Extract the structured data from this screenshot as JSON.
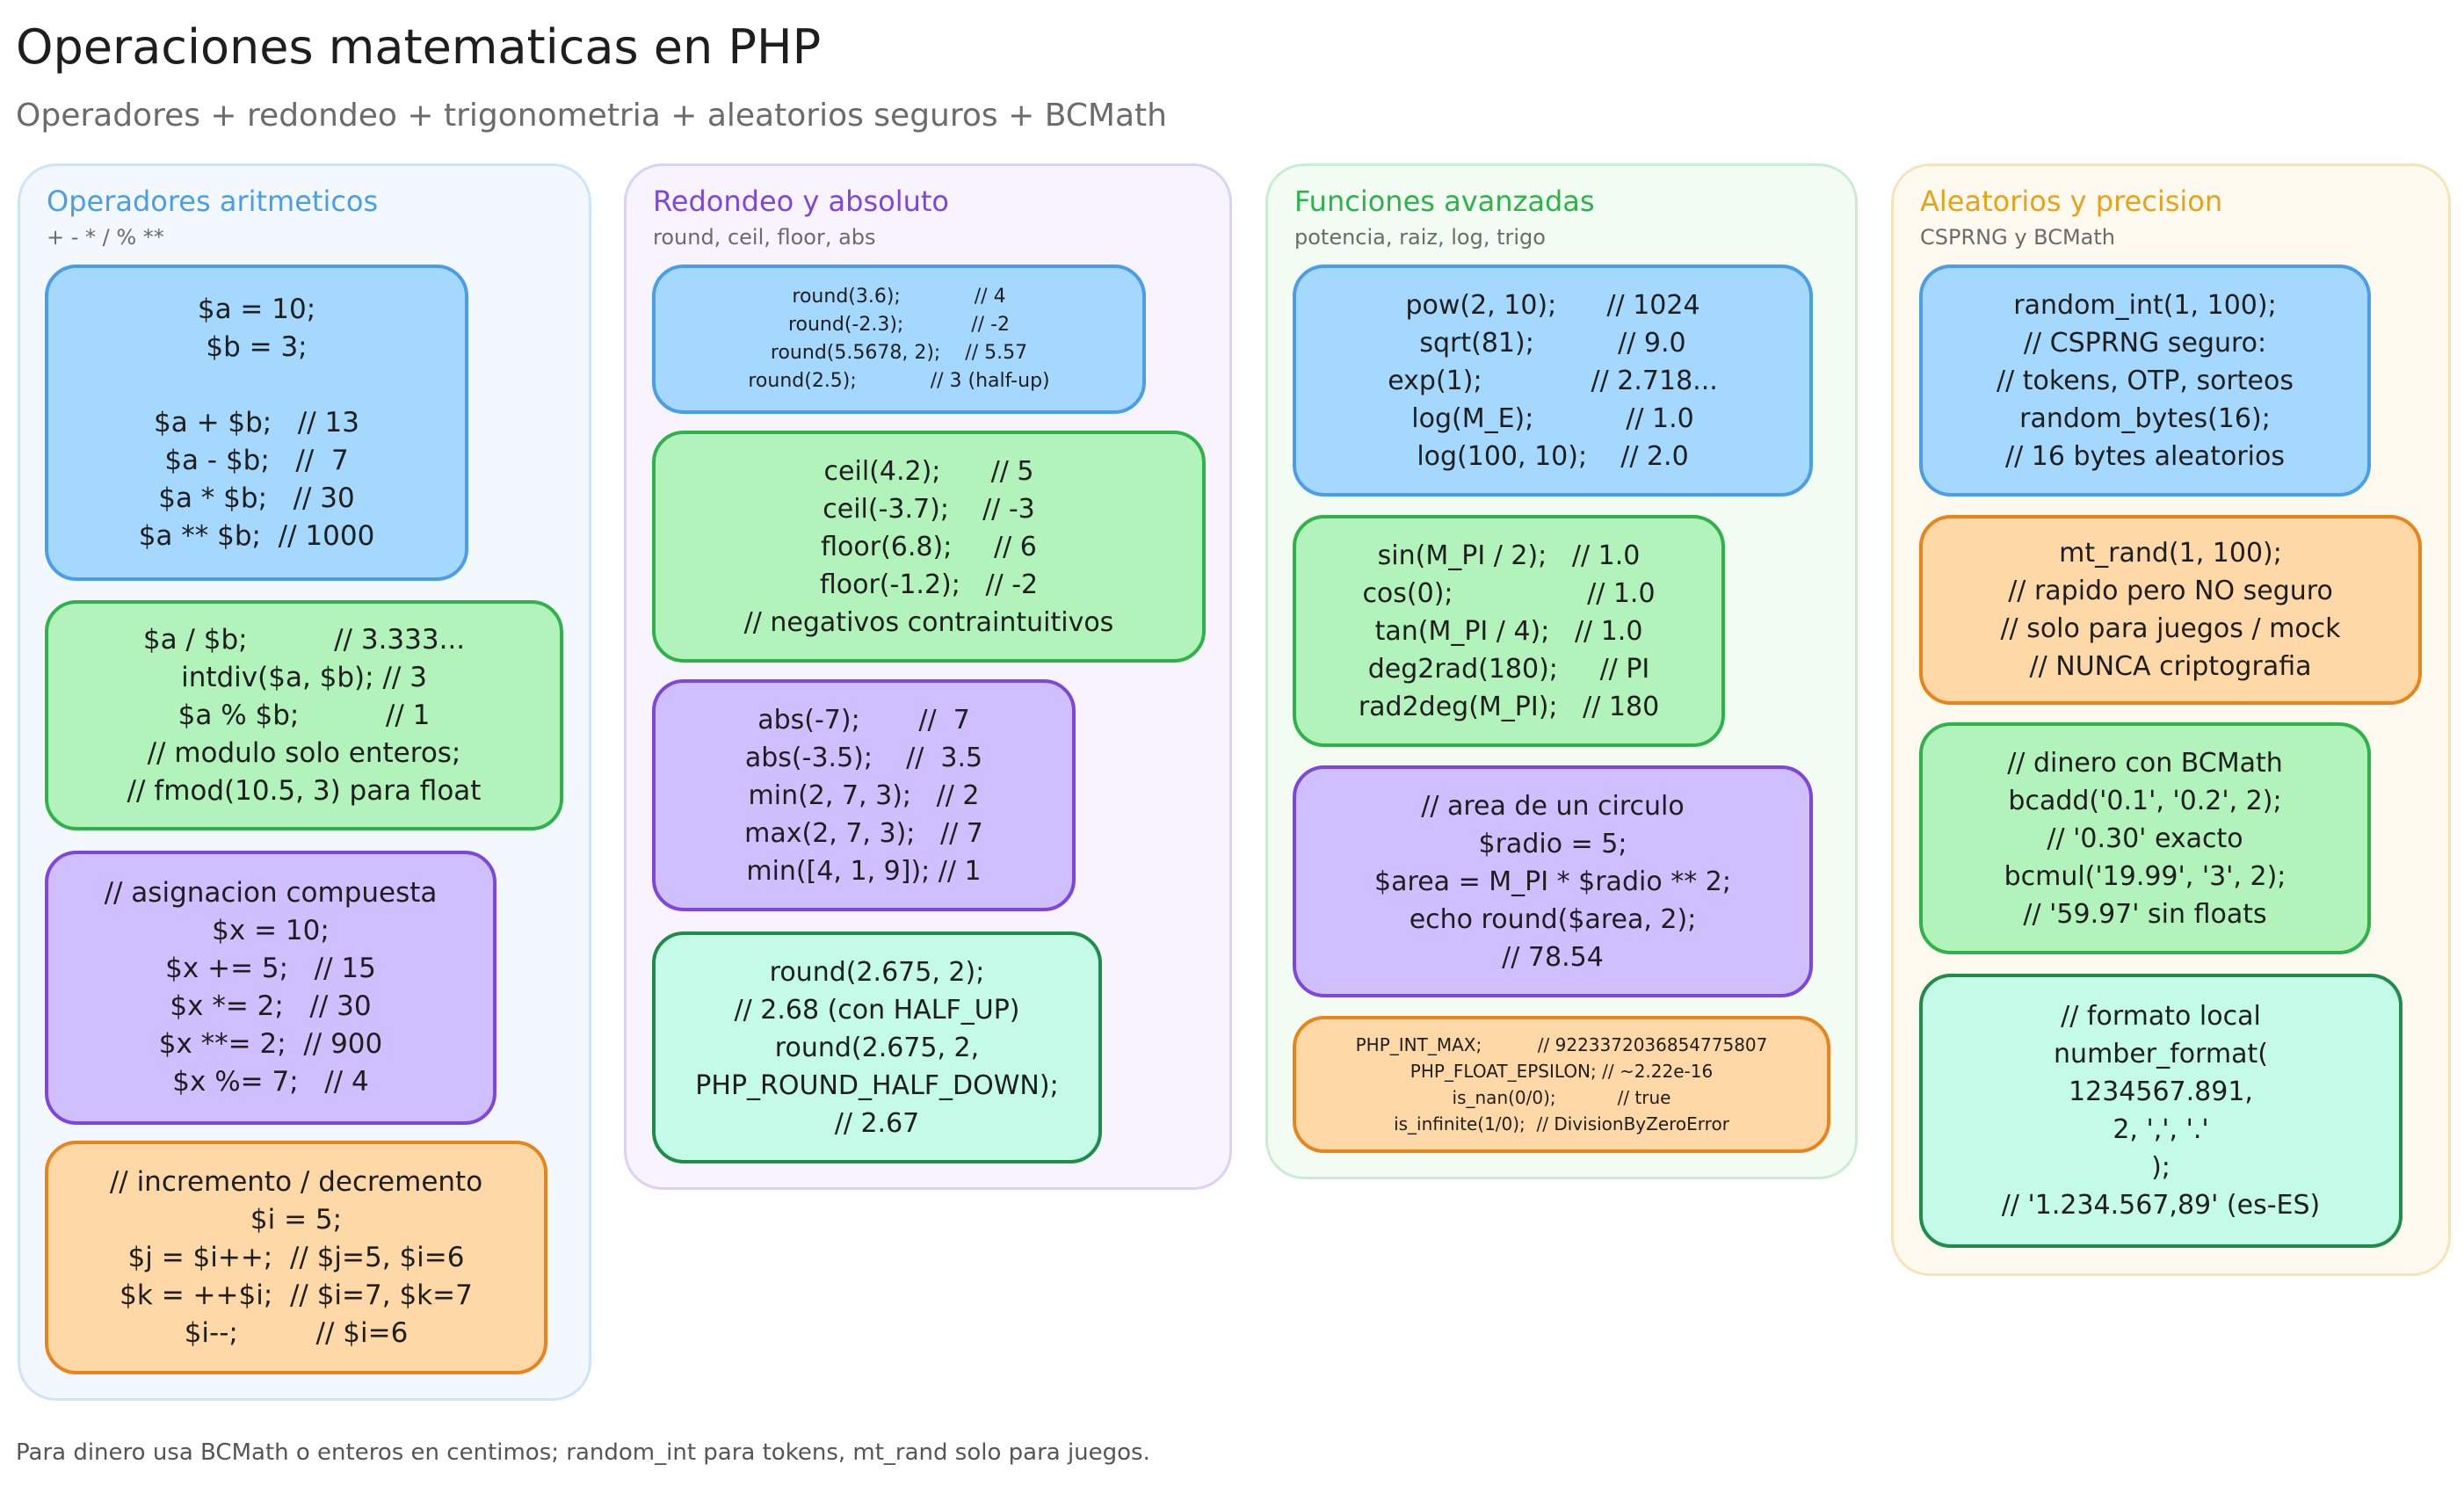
{
  "title": "Operaciones matematicas en PHP",
  "subtitle": "Operadores + redondeo + trigonometria + aleatorios seguros + BCMath",
  "footer": "Para dinero usa BCMath o enteros en centimos; random_int para tokens, mt_rand solo para juegos.",
  "colors": {
    "blue_fill": "#a5d8ff",
    "green_fill": "#b2f2bb",
    "purple_fill": "#d0bfff",
    "orange_fill": "#ffd8a8",
    "teal_fill": "#c3fae8",
    "col1_accent": "#4a9ee8",
    "col2_accent": "#7e46df",
    "col3_accent": "#2fb24a",
    "col4_accent": "#e8a21a"
  },
  "columns": [
    {
      "title": "Operadores aritmeticos",
      "subtitle": "+ - * / % **",
      "cards": [
        {
          "lines": [
            "$a = 10;",
            "$b = 3;",
            "",
            "$a + $b;   // 13",
            "$a - $b;   //  7",
            "$a * $b;   // 30",
            "$a ** $b;  // 1000"
          ]
        },
        {
          "lines": [
            "$a / $b;          // 3.333...",
            "intdiv($a, $b); // 3",
            "$a % $b;          // 1",
            "// modulo solo enteros;",
            "// fmod(10.5, 3) para float"
          ]
        },
        {
          "lines": [
            "// asignacion compuesta",
            "$x = 10;",
            "$x += 5;   // 15",
            "$x *= 2;   // 30",
            "$x **= 2;  // 900",
            "$x %= 7;   // 4"
          ]
        },
        {
          "lines": [
            "// incremento / decremento",
            "$i = 5;",
            "$j = $i++;  // $j=5, $i=6",
            "$k = ++$i;  // $i=7, $k=7",
            "$i--;         // $i=6"
          ]
        }
      ]
    },
    {
      "title": "Redondeo y absoluto",
      "subtitle": "round, ceil, floor, abs",
      "cards": [
        {
          "lines": [
            "round(3.6);            // 4",
            "round(-2.3);           // -2",
            "round(5.5678, 2);    // 5.57",
            "round(2.5);            // 3 (half-up)"
          ]
        },
        {
          "lines": [
            "ceil(4.2);      // 5",
            "ceil(-3.7);    // -3",
            "floor(6.8);     // 6",
            "floor(-1.2);   // -2",
            "// negativos contraintuitivos"
          ]
        },
        {
          "lines": [
            "abs(-7);       //  7",
            "abs(-3.5);    //  3.5",
            "min(2, 7, 3);   // 2",
            "max(2, 7, 3);   // 7",
            "min([4, 1, 9]); // 1"
          ]
        },
        {
          "lines": [
            "round(2.675, 2);",
            "// 2.68 (con HALF_UP)",
            "round(2.675, 2,",
            "PHP_ROUND_HALF_DOWN);",
            "// 2.67"
          ]
        }
      ]
    },
    {
      "title": "Funciones avanzadas",
      "subtitle": "potencia, raiz, log, trigo",
      "cards": [
        {
          "lines": [
            "pow(2, 10);      // 1024",
            "sqrt(81);          // 9.0",
            "exp(1);             // 2.718...",
            "log(M_E);           // 1.0",
            "log(100, 10);    // 2.0"
          ]
        },
        {
          "lines": [
            "sin(M_PI / 2);   // 1.0",
            "cos(0);                // 1.0",
            "tan(M_PI / 4);   // 1.0",
            "deg2rad(180);     // PI",
            "rad2deg(M_PI);   // 180"
          ]
        },
        {
          "lines": [
            "// area de un circulo",
            "$radio = 5;",
            "$area = M_PI * $radio ** 2;",
            "echo round($area, 2);",
            "// 78.54"
          ]
        },
        {
          "lines": [
            "PHP_INT_MAX;          // 9223372036854775807",
            "PHP_FLOAT_EPSILON; // ~2.22e-16",
            "is_nan(0/0);           // true",
            "is_infinite(1/0);  // DivisionByZeroError"
          ]
        }
      ]
    },
    {
      "title": "Aleatorios y precision",
      "subtitle": "CSPRNG y BCMath",
      "cards": [
        {
          "lines": [
            "random_int(1, 100);",
            "// CSPRNG seguro:",
            "// tokens, OTP, sorteos",
            "random_bytes(16);",
            "// 16 bytes aleatorios"
          ]
        },
        {
          "lines": [
            "mt_rand(1, 100);",
            "// rapido pero NO seguro",
            "// solo para juegos / mock",
            "// NUNCA criptografia"
          ]
        },
        {
          "lines": [
            "// dinero con BCMath",
            "bcadd('0.1', '0.2', 2);",
            "// '0.30' exacto",
            "bcmul('19.99', '3', 2);",
            "// '59.97' sin floats"
          ]
        },
        {
          "lines": [
            "// formato local",
            "number_format(",
            "1234567.891,",
            "2, ',', '.'",
            ");",
            "// '1.234.567,89' (es-ES)"
          ]
        }
      ]
    }
  ]
}
